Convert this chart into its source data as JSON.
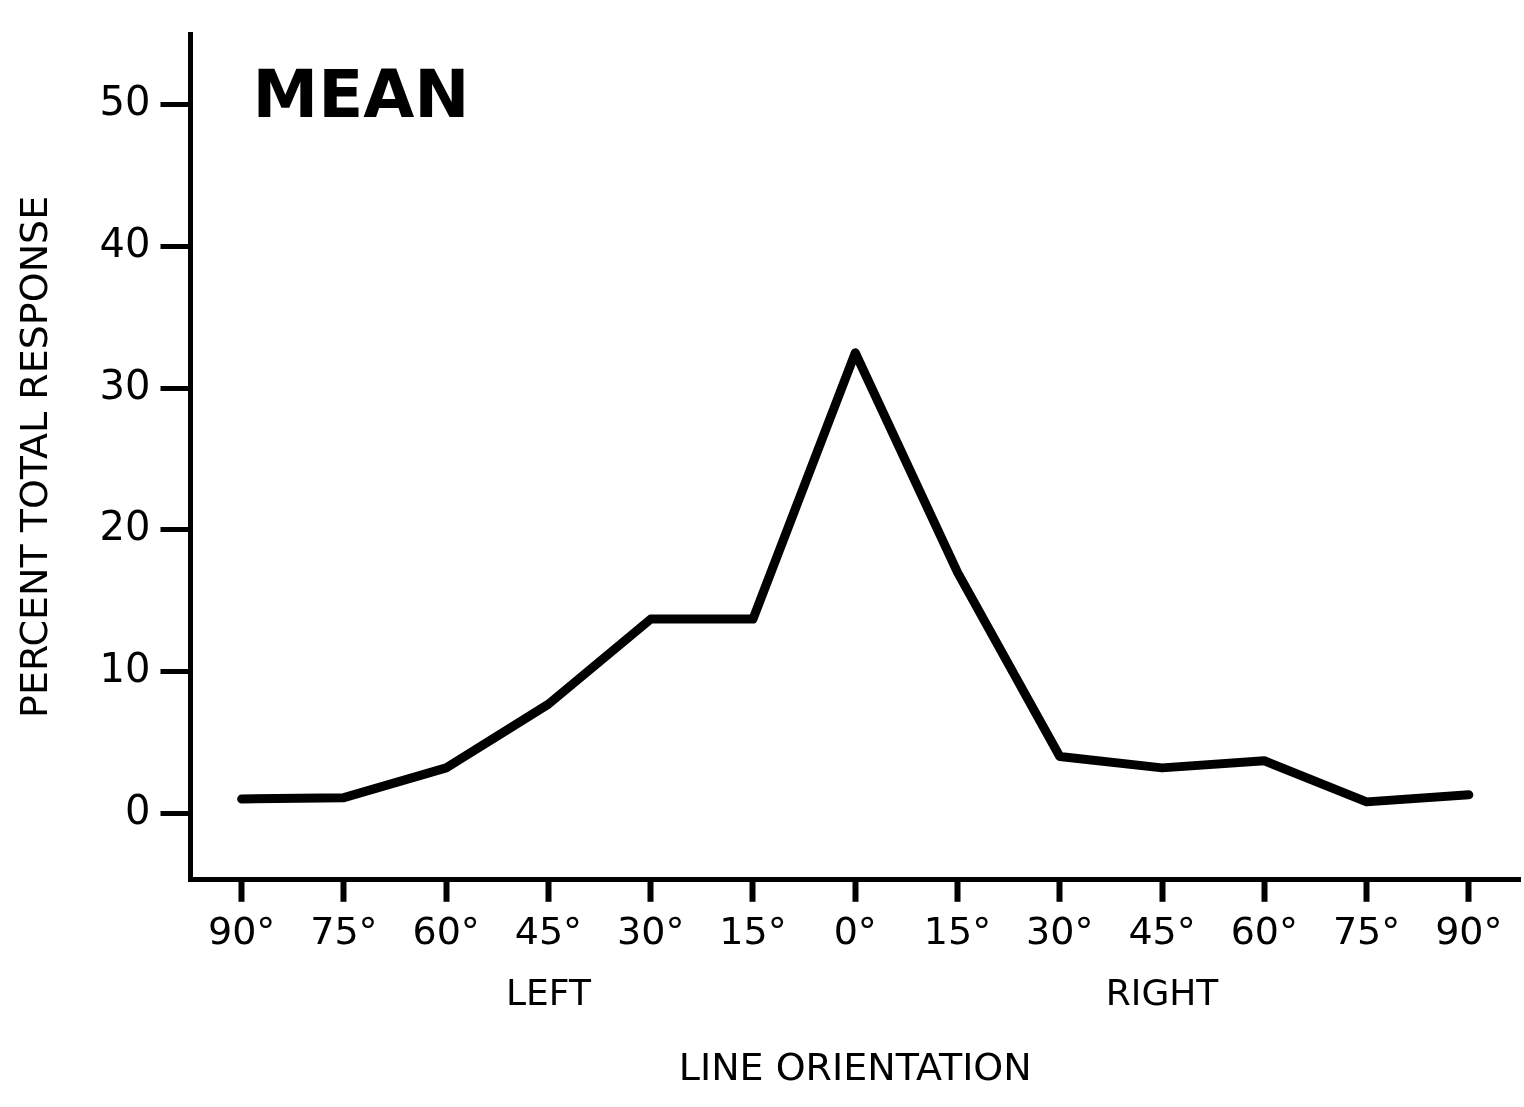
{
  "chart_data": {
    "type": "line",
    "title": "MEAN",
    "xlabel": "LINE ORIENTATION",
    "ylabel": "PERCENT TOTAL RESPONSE",
    "categories": [
      "90°",
      "75°",
      "60°",
      "45°",
      "30°",
      "15°",
      "0°",
      "15°",
      "30°",
      "45°",
      "60°",
      "75°",
      "90°"
    ],
    "series": [
      {
        "color": "#000000",
        "values": [
          1.0,
          1.1,
          3.2,
          7.7,
          13.7,
          13.7,
          32.5,
          17.0,
          4.0,
          3.2,
          3.7,
          0.8,
          1.3
        ]
      }
    ],
    "ylim": [
      -4.7,
      55
    ],
    "yticks": [
      0,
      10,
      20,
      30,
      40,
      50
    ],
    "annotations": [
      "LEFT",
      "RIGHT"
    ],
    "grid": false,
    "legend": false,
    "marker": "none",
    "line_style": "solid"
  }
}
